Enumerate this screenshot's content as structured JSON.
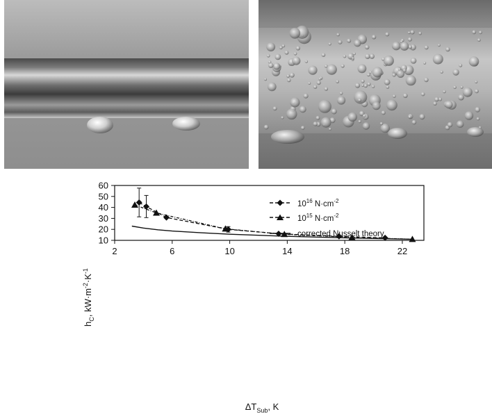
{
  "photos": [
    {
      "caption": "",
      "visual": "horizontal tube with few large droplets (photo)"
    },
    {
      "caption": "",
      "visual": "horizontal tube covered with many small droplets (photo)"
    }
  ],
  "chart_data": {
    "type": "scatter",
    "title": "",
    "ylabel_base": "h",
    "ylabel_sub": "C",
    "ylabel_rest": ", kW·m",
    "ylabel_sup1": "-2",
    "ylabel_mid": "·K",
    "ylabel_sup2": "-1",
    "xlabel_base": "ΔT",
    "xlabel_sub": "Sub",
    "xlabel_rest": ", K",
    "xlim": [
      2,
      23.5
    ],
    "ylim": [
      10,
      60
    ],
    "xticks": [
      2,
      6,
      10,
      14,
      18,
      22
    ],
    "yticks": [
      10,
      20,
      30,
      40,
      50,
      60
    ],
    "grid": false,
    "legend_position": "top-right",
    "legend": [
      {
        "base": "10",
        "sup": "16",
        "rest": " N·cm",
        "sup2": "-2"
      },
      {
        "base": "10",
        "sup": "15",
        "rest": " N·cm",
        "sup2": "-2"
      },
      {
        "text": "corrected Nusselt theory"
      }
    ],
    "series": [
      {
        "marker": "diamond",
        "line": "dashed",
        "x": [
          3.7,
          4.2,
          5.6,
          9.9,
          13.4,
          17.6,
          20.8
        ],
        "y": [
          44.5,
          40.8,
          30.8,
          20.0,
          16.0,
          13.6,
          12.3
        ],
        "error": [
          13.1,
          10.1,
          0,
          2.5,
          0,
          0,
          0
        ]
      },
      {
        "marker": "triangle",
        "line": "dashed",
        "x": [
          3.4,
          4.9,
          9.7,
          13.8,
          18.5,
          22.7
        ],
        "y": [
          42.3,
          35.0,
          20.5,
          15.5,
          12.8,
          11.0
        ],
        "error": [
          0,
          0,
          0,
          0,
          0,
          0
        ]
      },
      {
        "marker": "none",
        "line": "solid",
        "x": [
          3.2,
          4,
          5,
          6,
          8,
          10,
          12,
          14,
          16,
          18,
          20,
          22,
          22.7
        ],
        "y": [
          23.0,
          21.2,
          19.6,
          18.5,
          16.9,
          15.6,
          14.6,
          13.7,
          13.0,
          12.3,
          11.7,
          11.2,
          11.0
        ]
      }
    ]
  }
}
